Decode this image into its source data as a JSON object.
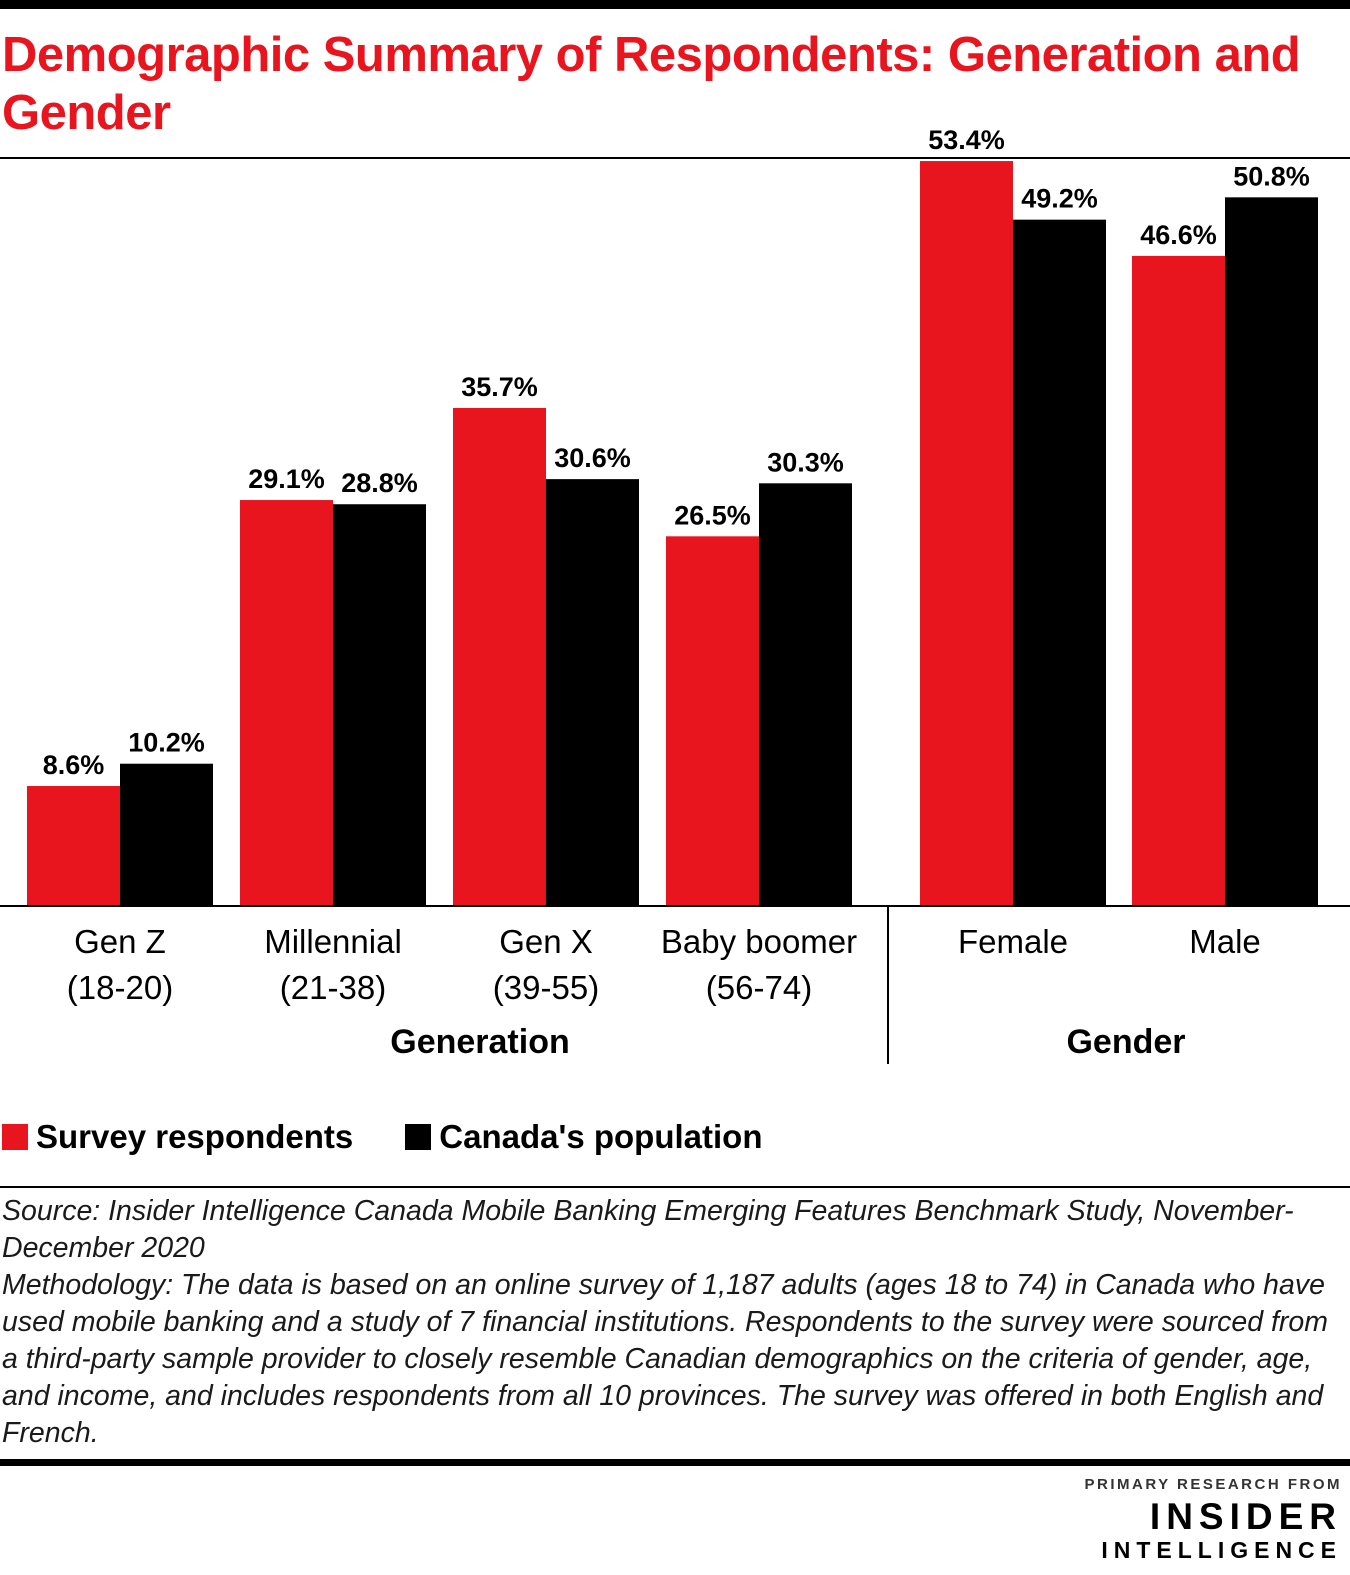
{
  "title": "Demographic Summary of Respondents: Generation and Gender",
  "colors": {
    "survey": "#e8141e",
    "population": "#000000",
    "accent": "#e8141e"
  },
  "chart_data": {
    "type": "bar",
    "title": "Demographic Summary of Respondents: Generation and Gender",
    "xlabel": "",
    "ylabel": "",
    "ylim": [
      0,
      55
    ],
    "grid": false,
    "legend_position": "bottom-left",
    "categories": [
      "Gen Z\n(18-20)",
      "Millennial\n(21-38)",
      "Gen X\n(39-55)",
      "Baby boomer\n(56-74)",
      "Female",
      "Male"
    ],
    "groups": [
      {
        "name": "Generation",
        "categories": [
          "Gen Z\n(18-20)",
          "Millennial\n(21-38)",
          "Gen X\n(39-55)",
          "Baby boomer\n(56-74)"
        ]
      },
      {
        "name": "Gender",
        "categories": [
          "Female",
          "Male"
        ]
      }
    ],
    "series": [
      {
        "name": "Survey respondents",
        "values": [
          8.6,
          29.1,
          35.7,
          26.5,
          53.4,
          46.6
        ],
        "labels": [
          "8.6%",
          "29.1%",
          "35.7%",
          "26.5%",
          "53.4%",
          "46.6%"
        ]
      },
      {
        "name": "Canada's population",
        "values": [
          10.2,
          28.8,
          30.6,
          30.3,
          49.2,
          50.8
        ],
        "labels": [
          "10.2%",
          "28.8%",
          "30.6%",
          "30.3%",
          "49.2%",
          "50.8%"
        ]
      }
    ]
  },
  "legend": {
    "survey": "Survey respondents",
    "population": "Canada's population"
  },
  "notes": {
    "source": "Source: Insider Intelligence Canada Mobile Banking Emerging Features Benchmark Study, November-December 2020",
    "methodology": "Methodology: The data is based on an online survey of 1,187 adults (ages 18 to 74) in Canada who have used mobile banking and a study of 7 financial institutions. Respondents to the survey were sourced from a third-party sample provider to closely resemble Canadian demographics on the criteria of gender, age, and income, and includes respondents from all 10 provinces. The survey was offered in both English and French."
  },
  "brand": {
    "kicker": "PRIMARY RESEARCH FROM",
    "main": "INSIDER",
    "sub": "INTELLIGENCE"
  }
}
